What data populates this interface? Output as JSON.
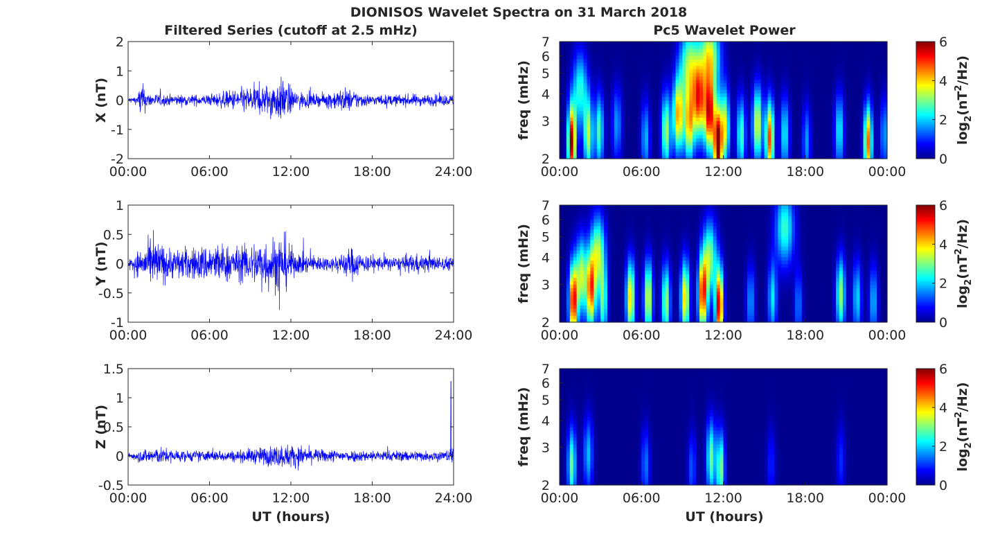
{
  "figure": {
    "title": "DIONISOS Wavelet Spectra on 31 March 2018",
    "left_title": "Filtered Series (cutoff at 2.5 mHz)",
    "right_title": "Pc5 Wavelet Power",
    "xlabel": "UT (hours)"
  },
  "colors": {
    "trace": "#0000ff",
    "axes": "#262626",
    "background": "#ffffff"
  },
  "chart_data": [
    {
      "type": "line",
      "panel": "X",
      "ylabel": "X (nT)",
      "ylim": [
        -2,
        2
      ],
      "yticks": [
        "2",
        "1",
        "0",
        "-1",
        "-2"
      ],
      "xticks": [
        "00:00",
        "06:00",
        "12:00",
        "18:00",
        "24:00"
      ],
      "xlim_hours": [
        0,
        24
      ],
      "series": [
        {
          "envelope": [
            [
              0,
              0.1
            ],
            [
              0.7,
              0.15
            ],
            [
              0.9,
              0.7
            ],
            [
              1.5,
              0.25
            ],
            [
              3,
              0.2
            ],
            [
              6,
              0.2
            ],
            [
              8,
              0.4
            ],
            [
              9,
              0.5
            ],
            [
              10,
              0.55
            ],
            [
              11.5,
              0.8
            ],
            [
              12.2,
              0.35
            ],
            [
              14,
              0.2
            ],
            [
              16,
              0.45
            ],
            [
              17,
              0.3
            ],
            [
              18,
              0.18
            ],
            [
              21,
              0.22
            ],
            [
              23,
              0.2
            ],
            [
              24,
              0.2
            ]
          ]
        }
      ]
    },
    {
      "type": "line",
      "panel": "Y",
      "ylabel": "Y (nT)",
      "ylim": [
        -1,
        1
      ],
      "yticks": [
        "1",
        "0.5",
        "0",
        "-0.5",
        "-1"
      ],
      "xticks": [
        "00:00",
        "06:00",
        "12:00",
        "18:00",
        "24:00"
      ],
      "xlim_hours": [
        0,
        24
      ],
      "series": [
        {
          "envelope": [
            [
              0,
              0.1
            ],
            [
              1,
              0.28
            ],
            [
              2,
              0.45
            ],
            [
              3,
              0.28
            ],
            [
              5,
              0.3
            ],
            [
              6.5,
              0.38
            ],
            [
              8,
              0.3
            ],
            [
              10,
              0.45
            ],
            [
              11.5,
              0.55
            ],
            [
              12.3,
              0.2
            ],
            [
              15,
              0.12
            ],
            [
              16.5,
              0.3
            ],
            [
              17.5,
              0.15
            ],
            [
              20,
              0.12
            ],
            [
              21,
              0.18
            ],
            [
              23,
              0.13
            ],
            [
              24,
              0.12
            ]
          ]
        }
      ]
    },
    {
      "type": "line",
      "panel": "Z",
      "ylabel": "Z (nT)",
      "ylim": [
        -0.5,
        1.5
      ],
      "yticks": [
        "1.5",
        "1",
        "0.5",
        "0",
        "-0.5"
      ],
      "xticks": [
        "00:00",
        "06:00",
        "12:00",
        "18:00",
        "24:00"
      ],
      "xlim_hours": [
        0,
        24
      ],
      "series": [
        {
          "envelope": [
            [
              0,
              0.05
            ],
            [
              1,
              0.12
            ],
            [
              2,
              0.16
            ],
            [
              4,
              0.1
            ],
            [
              8,
              0.1
            ],
            [
              11,
              0.2
            ],
            [
              12,
              0.22
            ],
            [
              14,
              0.12
            ],
            [
              18,
              0.1
            ],
            [
              21,
              0.1
            ],
            [
              23.5,
              0.1
            ],
            [
              24,
              0.2
            ]
          ],
          "spike_hour": 23.8,
          "spike_value": 1.28
        }
      ]
    },
    {
      "type": "heatmap",
      "panel": "X",
      "ylabel": "freq (mHz)",
      "yscale": "log",
      "ylim_mhz": [
        2,
        7
      ],
      "yticks": [
        "7",
        "6",
        "5",
        "4",
        "3",
        "2"
      ],
      "xticks": [
        "00:00",
        "06:00",
        "12:00",
        "18:00",
        "00:00"
      ],
      "colorbar": {
        "label": "log2(nT2/Hz)",
        "range": [
          0,
          6
        ],
        "ticks": [
          "6",
          "4",
          "2",
          "0"
        ]
      },
      "blobs": [
        [
          0.9,
          2.4,
          5.8
        ],
        [
          2.1,
          2.6,
          3.2
        ],
        [
          2.9,
          2.7,
          2.6
        ],
        [
          1.5,
          4.2,
          2.4
        ],
        [
          4.2,
          2.9,
          1.6
        ],
        [
          6.3,
          2.5,
          1.8
        ],
        [
          7.8,
          2.7,
          3.2
        ],
        [
          8.7,
          3.2,
          4.2
        ],
        [
          9.5,
          2.9,
          3.8
        ],
        [
          10.2,
          3.7,
          4.5
        ],
        [
          11,
          3.2,
          5.2
        ],
        [
          11.6,
          2.3,
          6
        ],
        [
          12.1,
          2.8,
          3.6
        ],
        [
          13.3,
          2.6,
          2.6
        ],
        [
          14.5,
          2.9,
          3.6
        ],
        [
          15.4,
          2.5,
          4.8
        ],
        [
          16.5,
          2.6,
          2.2
        ],
        [
          18.1,
          2.4,
          1.6
        ],
        [
          20.5,
          2.7,
          2.2
        ],
        [
          22.6,
          2.4,
          4.6
        ],
        [
          23.8,
          2.6,
          1.6
        ],
        [
          9.5,
          5.5,
          3
        ],
        [
          11,
          6,
          3.5
        ]
      ]
    },
    {
      "type": "heatmap",
      "panel": "Y",
      "ylabel": "freq (mHz)",
      "yscale": "log",
      "ylim_mhz": [
        2,
        7
      ],
      "yticks": [
        "7",
        "6",
        "5",
        "4",
        "3",
        "2"
      ],
      "xticks": [
        "00:00",
        "06:00",
        "12:00",
        "18:00",
        "00:00"
      ],
      "colorbar": {
        "label": "log2(nT2/Hz)",
        "range": [
          0,
          6
        ],
        "ticks": [
          "6",
          "4",
          "2",
          "0"
        ]
      },
      "blobs": [
        [
          1,
          2.5,
          5.4
        ],
        [
          2.3,
          2.8,
          4.5
        ],
        [
          1.6,
          3.3,
          3.3
        ],
        [
          3.2,
          2.5,
          2.6
        ],
        [
          5.2,
          2.6,
          4
        ],
        [
          6.5,
          2.6,
          3.6
        ],
        [
          7.8,
          2.5,
          3.2
        ],
        [
          9.2,
          2.6,
          4
        ],
        [
          10.5,
          2.7,
          5
        ],
        [
          11.7,
          2.4,
          5.6
        ],
        [
          14,
          2.5,
          1.6
        ],
        [
          15.6,
          2.6,
          2.1
        ],
        [
          16.5,
          5.5,
          2.5
        ],
        [
          17.5,
          2.4,
          1.4
        ],
        [
          20.6,
          2.7,
          3
        ],
        [
          21.8,
          2.6,
          2
        ],
        [
          23,
          2.5,
          1.8
        ],
        [
          2.8,
          4.2,
          3.2
        ],
        [
          11,
          4,
          3
        ]
      ]
    },
    {
      "type": "heatmap",
      "panel": "Z",
      "ylabel": "freq (mHz)",
      "yscale": "log",
      "ylim_mhz": [
        2,
        7
      ],
      "yticks": [
        "7",
        "6",
        "5",
        "4",
        "3",
        "2"
      ],
      "xticks": [
        "00:00",
        "06:00",
        "12:00",
        "18:00",
        "00:00"
      ],
      "colorbar": {
        "label": "log2(nT2/Hz)",
        "range": [
          0,
          6
        ],
        "ticks": [
          "6",
          "4",
          "2",
          "0"
        ]
      },
      "blobs": [
        [
          0.9,
          2.5,
          2.8
        ],
        [
          2.1,
          2.8,
          1.8
        ],
        [
          6.3,
          2.5,
          1.4
        ],
        [
          9.7,
          2.4,
          1.2
        ],
        [
          11.1,
          2.7,
          2.8
        ],
        [
          11.8,
          2.4,
          3
        ],
        [
          15.5,
          2.5,
          0.9
        ],
        [
          20.6,
          2.6,
          0.9
        ]
      ]
    }
  ]
}
